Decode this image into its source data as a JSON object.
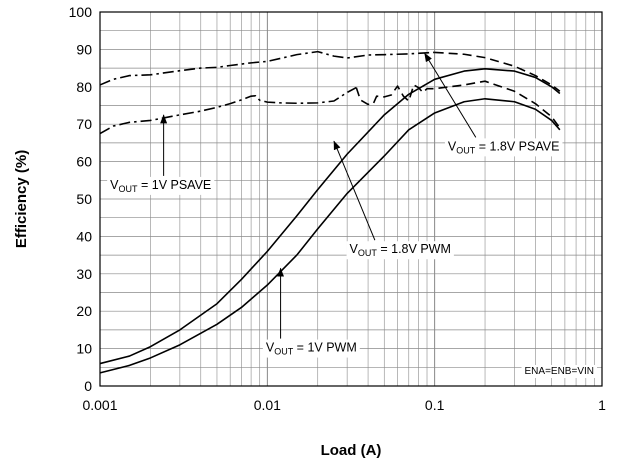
{
  "chart_data": {
    "type": "line",
    "title": "",
    "xlabel": "Load (A)",
    "ylabel": "Efficiency (%)",
    "xscale": "log",
    "xlim": [
      0.001,
      1
    ],
    "ylim": [
      0,
      100
    ],
    "grid": true,
    "x_ticks": [
      0.001,
      0.01,
      0.1,
      1
    ],
    "x_tick_labels": [
      "0.001",
      "0.01",
      "0.1",
      "1"
    ],
    "y_ticks": [
      0,
      10,
      20,
      30,
      40,
      50,
      60,
      70,
      80,
      90,
      100
    ],
    "y_tick_labels": [
      "0",
      "10",
      "20",
      "30",
      "40",
      "50",
      "60",
      "70",
      "80",
      "90",
      "100"
    ],
    "series": [
      {
        "style": "dash-dot",
        "color": "#000000",
        "x": [
          0.001,
          0.0012,
          0.0015,
          0.002,
          0.003,
          0.004,
          0.005,
          0.006,
          0.008,
          0.01,
          0.012,
          0.015,
          0.02,
          0.025,
          0.03,
          0.04,
          0.05,
          0.07,
          0.1
        ],
        "y": [
          80.5,
          82,
          83,
          83.2,
          84.3,
          85,
          85.2,
          85.7,
          86.4,
          86.8,
          87.6,
          88.6,
          89.4,
          88.2,
          87.7,
          88.5,
          88.6,
          88.8,
          89.2
        ]
      },
      {
        "style": "dashed",
        "color": "#000000",
        "x": [
          0.1,
          0.15,
          0.2,
          0.3,
          0.4,
          0.5,
          0.56
        ],
        "y": [
          89.2,
          88.7,
          87.8,
          85.5,
          83,
          80.5,
          78.8
        ]
      },
      {
        "style": "dash-dot",
        "color": "#000000",
        "x": [
          0.001,
          0.0012,
          0.0015,
          0.002,
          0.003,
          0.004,
          0.005,
          0.006,
          0.007,
          0.008,
          0.0085,
          0.009,
          0.01,
          0.012,
          0.015,
          0.02,
          0.025,
          0.03,
          0.034
        ],
        "y": [
          67.5,
          69.5,
          70.5,
          71,
          72.5,
          73.5,
          74.5,
          75.5,
          76.5,
          77.5,
          77.6,
          76.4,
          75.9,
          75.7,
          75.6,
          75.7,
          76.2,
          78.5,
          79.8
        ]
      },
      {
        "style": "dashed",
        "color": "#000000",
        "x": [
          0.034,
          0.036,
          0.04,
          0.043,
          0.045,
          0.05,
          0.055,
          0.06,
          0.065,
          0.07,
          0.075,
          0.08,
          0.085,
          0.09,
          0.1,
          0.15,
          0.2,
          0.3,
          0.4,
          0.5,
          0.56
        ],
        "y": [
          79.8,
          76.5,
          75.3,
          75.5,
          77.5,
          77.3,
          77.8,
          80.2,
          77.5,
          76.2,
          80.5,
          79.8,
          78.5,
          79.5,
          79.5,
          80.5,
          81.5,
          78.8,
          75.5,
          72,
          69
        ]
      },
      {
        "style": "solid",
        "color": "#000000",
        "x": [
          0.001,
          0.0015,
          0.002,
          0.003,
          0.005,
          0.007,
          0.01,
          0.015,
          0.02,
          0.03,
          0.05,
          0.07,
          0.1,
          0.15,
          0.2,
          0.3,
          0.4,
          0.5,
          0.56
        ],
        "y": [
          6,
          8,
          10.5,
          15,
          22,
          28.5,
          36,
          45.5,
          52.5,
          62,
          72.5,
          78,
          82,
          84.2,
          84.8,
          84.2,
          82.5,
          80,
          78.2
        ]
      },
      {
        "style": "solid",
        "color": "#000000",
        "x": [
          0.001,
          0.0015,
          0.002,
          0.003,
          0.005,
          0.007,
          0.01,
          0.015,
          0.02,
          0.03,
          0.05,
          0.07,
          0.1,
          0.15,
          0.2,
          0.3,
          0.4,
          0.5,
          0.56
        ],
        "y": [
          3.5,
          5.5,
          7.5,
          11,
          16.5,
          21,
          27,
          35,
          42,
          51.5,
          61.5,
          68.5,
          73,
          76,
          76.8,
          76,
          74,
          71,
          68.5
        ]
      }
    ],
    "annotations": [
      {
        "label": "V",
        "sub": "OUT",
        "rest": " = 1.8V PSAVE",
        "x": 0.12,
        "y": 63,
        "arrow_to_x": 0.087,
        "arrow_to_y": 89
      },
      {
        "label": "V",
        "sub": "OUT",
        "rest": " = 1V PSAVE",
        "x": 0.00115,
        "y": 52.7,
        "arrow_to_x": 0.0024,
        "arrow_to_y": 72.5
      },
      {
        "label": "V",
        "sub": "OUT",
        "rest": " = 1.8V PWM",
        "x": 0.031,
        "y": 35.5,
        "arrow_to_x": 0.025,
        "arrow_to_y": 65.5
      },
      {
        "label": "V",
        "sub": "OUT",
        "rest": " = 1V PWM",
        "x": 0.0098,
        "y": 9.2,
        "arrow_to_x": 0.012,
        "arrow_to_y": 31.5
      }
    ],
    "note": "ENA=ENB=VIN"
  }
}
